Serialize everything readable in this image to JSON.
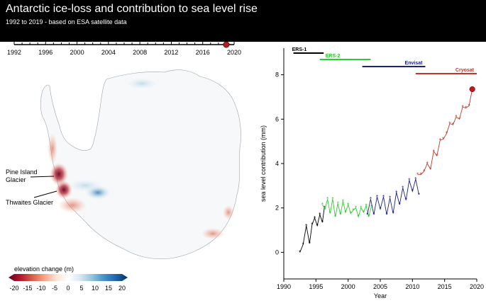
{
  "header": {
    "title": "Antarctic ice-loss and contribution to sea level rise",
    "subtitle": "1992 to 2019 - based on ESA satellite data"
  },
  "timeline": {
    "ticks": [
      "1992",
      "1996",
      "2000",
      "2004",
      "2008",
      "2012",
      "2016",
      "2020"
    ],
    "range": [
      1992,
      2020
    ],
    "current_year": 2019,
    "marker_color": "#c0181b"
  },
  "map": {
    "annotations": {
      "pine_island": "Pine Island\nGlacier",
      "thwaites": "Thwaites Glacier"
    },
    "colorbar": {
      "label": "elevation change (m)",
      "ticks": [
        "-20",
        "-15",
        "-10",
        "-5",
        "0",
        "5",
        "10",
        "15",
        "20"
      ],
      "range": [
        -20,
        20
      ],
      "colors": [
        "#67001f",
        "#b2182b",
        "#d6604d",
        "#f4a582",
        "#fbe3d6",
        "#ffffff",
        "#d8e8f2",
        "#92c5de",
        "#4393c3",
        "#2166ac",
        "#053061"
      ]
    }
  },
  "chart_data": {
    "type": "line",
    "xlabel": "Year",
    "ylabel": "sea level contribution (mm)",
    "xlim": [
      1990,
      2020
    ],
    "ylim": [
      -1.2,
      9.2
    ],
    "xticks": [
      "1990",
      "1995",
      "2000",
      "2005",
      "2010",
      "2015",
      "2020"
    ],
    "yticks": [
      "0",
      "2",
      "4",
      "6",
      "8"
    ],
    "series": [
      {
        "name": "ERS-1",
        "color": "#000000",
        "x": [
          1992.5,
          1993.0,
          1993.5,
          1994.0,
          1994.4,
          1994.8,
          1995.2,
          1995.6,
          1996.0,
          1996.3
        ],
        "y": [
          0.0,
          0.35,
          1.2,
          0.4,
          1.25,
          1.55,
          1.2,
          1.7,
          1.35,
          2.0
        ]
      },
      {
        "name": "ERS-2",
        "color": "#2ecc2e",
        "x": [
          1996.0,
          1996.4,
          1996.8,
          1997.2,
          1997.6,
          1998.0,
          1998.4,
          1998.8,
          1999.2,
          1999.6,
          2000.0,
          2000.4,
          2000.8,
          2001.2,
          2001.6,
          2002.0,
          2002.4,
          2002.8,
          2003.2,
          2003.6
        ],
        "y": [
          2.15,
          1.95,
          2.4,
          1.75,
          2.4,
          1.6,
          2.2,
          1.7,
          2.3,
          1.8,
          2.15,
          1.75,
          1.9,
          2.0,
          1.6,
          2.0,
          1.8,
          2.1,
          1.6,
          2.05
        ]
      },
      {
        "name": "Envisat",
        "color": "#1a237e",
        "x": [
          2003.0,
          2003.5,
          2004.0,
          2004.5,
          2005.0,
          2005.5,
          2006.0,
          2006.5,
          2007.0,
          2007.5,
          2008.0,
          2008.5,
          2009.0,
          2009.5,
          2010.0,
          2010.5,
          2011.0
        ],
        "y": [
          1.7,
          2.4,
          1.7,
          2.5,
          1.95,
          2.5,
          1.7,
          2.45,
          1.75,
          2.7,
          2.15,
          2.9,
          2.35,
          3.25,
          2.75,
          3.3,
          2.6
        ]
      },
      {
        "name": "Cryosat",
        "color": "#c0392b",
        "x": [
          2010.8,
          2011.3,
          2011.8,
          2012.3,
          2012.8,
          2013.3,
          2013.8,
          2014.3,
          2014.8,
          2015.3,
          2015.8,
          2016.3,
          2016.8,
          2017.3,
          2017.8,
          2018.3,
          2018.8,
          2019.3
        ],
        "y": [
          3.5,
          3.5,
          3.65,
          4.0,
          3.75,
          4.55,
          4.35,
          5.05,
          5.1,
          5.35,
          5.8,
          5.75,
          6.1,
          6.0,
          6.55,
          6.5,
          6.6,
          7.35
        ]
      }
    ],
    "missions": [
      {
        "name": "ERS-1",
        "start": 1991.5,
        "end": 1996.2,
        "color": "#000000"
      },
      {
        "name": "ERS-2",
        "start": 1995.6,
        "end": 2003.5,
        "color": "#2ecc2e"
      },
      {
        "name": "Envisat",
        "start": 2002.2,
        "end": 2012.0,
        "color": "#1a237e"
      },
      {
        "name": "Cryosat",
        "start": 2010.5,
        "end": 2020.0,
        "color": "#c0392b"
      }
    ],
    "endpoint": {
      "x": 2019.3,
      "y": 7.35
    },
    "grid": false
  }
}
